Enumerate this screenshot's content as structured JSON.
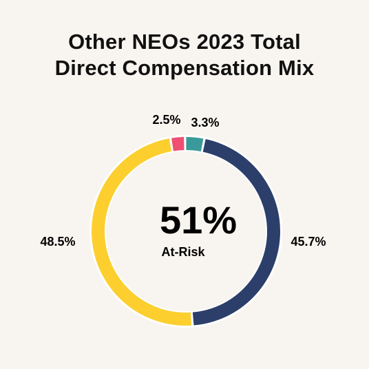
{
  "chart_data": {
    "type": "pie",
    "variant": "donut",
    "title_lines": [
      "Other NEOs 2023 Total",
      "Direct Compensation Mix"
    ],
    "center_value": "51%",
    "center_label": "At-Risk",
    "slices": [
      {
        "label": "2.5%",
        "value": 2.5,
        "color": "#ef4f73"
      },
      {
        "label": "3.3%",
        "value": 3.3,
        "color": "#3a9a9a"
      },
      {
        "label": "45.7%",
        "value": 45.7,
        "color": "#2c3f6b"
      },
      {
        "label": "48.5%",
        "value": 48.5,
        "color": "#fccf2f"
      }
    ]
  }
}
